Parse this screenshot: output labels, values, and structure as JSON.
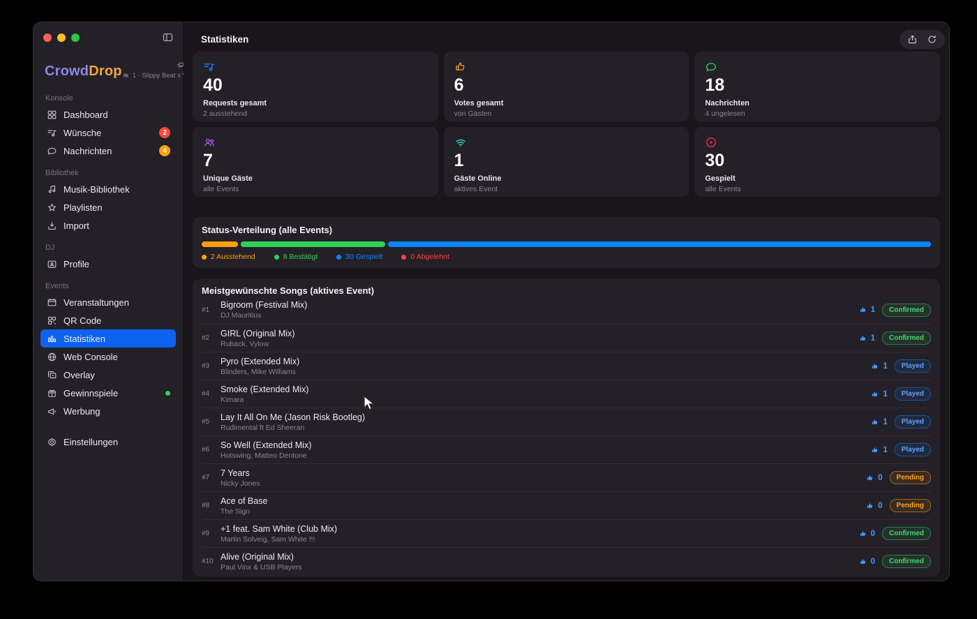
{
  "sidebar": {
    "logo": {
      "crowd": "Crowd",
      "drop": "Drop"
    },
    "session": {
      "line": "1 · Slippy Beat s V…"
    },
    "sections": [
      {
        "label": "Konsole",
        "items": [
          {
            "label": "Dashboard",
            "icon": "dashboard-grid-icon"
          },
          {
            "label": "Wünsche",
            "icon": "music-request-icon",
            "badge": "2",
            "badge_color": "#ff453a"
          },
          {
            "label": "Nachrichten",
            "icon": "chat-bubble-icon",
            "badge": "4",
            "badge_color": "#ff9f0a"
          }
        ]
      },
      {
        "label": "Bibliothek",
        "items": [
          {
            "label": "Musik-Bibliothek",
            "icon": "music-notes-icon"
          },
          {
            "label": "Playlisten",
            "icon": "star-icon"
          },
          {
            "label": "Import",
            "icon": "import-tray-icon"
          }
        ]
      },
      {
        "label": "DJ",
        "items": [
          {
            "label": "Profile",
            "icon": "id-card-icon"
          }
        ]
      },
      {
        "label": "Events",
        "items": [
          {
            "label": "Veranstaltungen",
            "icon": "calendar-icon"
          },
          {
            "label": "QR Code",
            "icon": "qr-code-icon"
          },
          {
            "label": "Statistiken",
            "icon": "bar-chart-icon",
            "active": true
          },
          {
            "label": "Web Console",
            "icon": "globe-icon"
          },
          {
            "label": "Overlay",
            "icon": "overlay-icon"
          },
          {
            "label": "Gewinnspiele",
            "icon": "gift-icon",
            "dot": "#30d158"
          },
          {
            "label": "Werbung",
            "icon": "megaphone-icon"
          }
        ]
      }
    ],
    "settings": {
      "label": "Einstellungen",
      "icon": "gear-icon"
    }
  },
  "header": {
    "title": "Statistiken",
    "actions": [
      "share-icon",
      "refresh-icon"
    ]
  },
  "stat_cards": [
    {
      "icon": "music-request-icon",
      "value": "40",
      "label": "Requests gesamt",
      "sub": "2 ausstehend",
      "color": "#0a84ff"
    },
    {
      "icon": "thumbs-up-icon",
      "value": "6",
      "label": "Votes gesamt",
      "sub": "von Gästen",
      "color": "#ff9f0a"
    },
    {
      "icon": "chat-bubble-icon",
      "value": "18",
      "label": "Nachrichten",
      "sub": "4 ungelesen",
      "color": "#30d158"
    },
    {
      "icon": "people-icon",
      "value": "7",
      "label": "Unique Gäste",
      "sub": "alle Events",
      "color": "#bf5af2"
    },
    {
      "icon": "wifi-icon",
      "value": "1",
      "label": "Gäste Online",
      "sub": "aktives Event",
      "color": "#32d0c8"
    },
    {
      "icon": "play-circle-icon",
      "value": "30",
      "label": "Gespielt",
      "sub": "alle Events",
      "color": "#ff2d55"
    }
  ],
  "status_distribution": {
    "title": "Status-Verteilung (alle Events)",
    "segments": [
      {
        "label": "2 Ausstehend",
        "value": 2,
        "pct": 5,
        "color": "#ff9f0a"
      },
      {
        "label": "8 Bestätigt",
        "value": 8,
        "pct": 20,
        "color": "#30d158"
      },
      {
        "label": "30 Gespielt",
        "value": 30,
        "pct": 75,
        "color": "#0a84ff"
      },
      {
        "label": "0 Abgelehnt",
        "value": 0,
        "pct": 0,
        "color": "#ff453a"
      }
    ]
  },
  "top_songs": {
    "title": "Meistgewünschte Songs (aktives Event)",
    "rows": [
      {
        "rank": "#1",
        "title": "Bigroom (Festival Mix)",
        "artist": "DJ Mauritius",
        "votes": "1",
        "status": "Confirmed"
      },
      {
        "rank": "#2",
        "title": "GIRL (Original Mix)",
        "artist": "Ruback, Vylow",
        "votes": "1",
        "status": "Confirmed"
      },
      {
        "rank": "#3",
        "title": "Pyro (Extended Mix)",
        "artist": "Blinders, Mike Williams",
        "votes": "1",
        "status": "Played"
      },
      {
        "rank": "#4",
        "title": "Smoke (Extended Mix)",
        "artist": "Kimara",
        "votes": "1",
        "status": "Played"
      },
      {
        "rank": "#5",
        "title": "Lay It All On Me (Jason Risk Bootleg)",
        "artist": "Rudimental ft Ed Sheeran",
        "votes": "1",
        "status": "Played"
      },
      {
        "rank": "#6",
        "title": "So Well (Extended Mix)",
        "artist": "Hotswing, Matteo Dentone",
        "votes": "1",
        "status": "Played"
      },
      {
        "rank": "#7",
        "title": "7 Years",
        "artist": "Nicky Jones",
        "votes": "0",
        "status": "Pending"
      },
      {
        "rank": "#8",
        "title": "Ace of Base",
        "artist": "The Sign",
        "votes": "0",
        "status": "Pending"
      },
      {
        "rank": "#9",
        "title": "+1 feat. Sam White (Club Mix)",
        "artist": "Martin Solveig, Sam White !!!",
        "votes": "0",
        "status": "Confirmed"
      },
      {
        "rank": "#10",
        "title": "Alive (Original Mix)",
        "artist": "Paul Vinx & USB Players",
        "votes": "0",
        "status": "Confirmed"
      }
    ]
  }
}
